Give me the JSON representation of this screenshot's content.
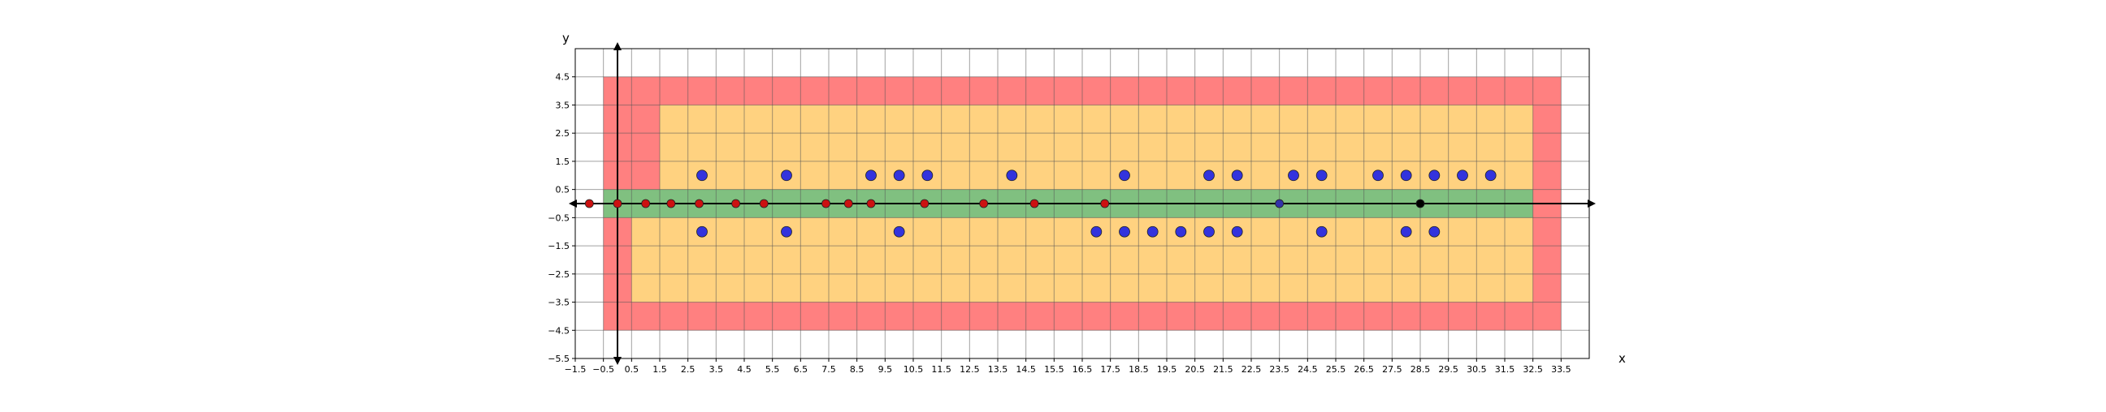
{
  "chart_data": {
    "type": "scatter",
    "title": "",
    "xlabel": "x",
    "ylabel": "y",
    "xlim": [
      -1.5,
      34.5
    ],
    "ylim": [
      -5.5,
      5.5
    ],
    "x_ticks": [
      -1.5,
      -0.5,
      0.5,
      1.5,
      2.5,
      3.5,
      4.5,
      5.5,
      6.5,
      7.5,
      8.5,
      9.5,
      10.5,
      11.5,
      12.5,
      13.5,
      14.5,
      15.5,
      16.5,
      17.5,
      18.5,
      19.5,
      20.5,
      21.5,
      22.5,
      23.5,
      24.5,
      25.5,
      26.5,
      27.5,
      28.5,
      29.5,
      30.5,
      31.5,
      32.5,
      33.5
    ],
    "y_ticks": [
      4.5,
      3.5,
      2.5,
      1.5,
      0.5,
      -0.5,
      -1.5,
      -2.5,
      -3.5,
      -4.5,
      -5.5
    ],
    "grid": true,
    "regions": [
      {
        "name": "outer",
        "color": "#ff8080",
        "xmin": -0.5,
        "xmax": 33.5,
        "ymin": -4.5,
        "ymax": 4.5
      },
      {
        "name": "inner-upper",
        "color": "#ffd280",
        "xmin": 1.5,
        "xmax": 32.5,
        "ymin": 0.5,
        "ymax": 3.5
      },
      {
        "name": "inner-lower",
        "color": "#ffd280",
        "xmin": 0.5,
        "xmax": 32.5,
        "ymin": -3.5,
        "ymax": -0.5
      },
      {
        "name": "band",
        "color": "#80c080",
        "xmin": -0.5,
        "xmax": 32.5,
        "ymin": -0.5,
        "ymax": 0.5
      }
    ],
    "series": [
      {
        "color": "#3333dd",
        "marker": "circle-large",
        "points": [
          [
            3,
            1
          ],
          [
            6,
            1
          ],
          [
            9,
            1
          ],
          [
            10,
            1
          ],
          [
            11,
            1
          ],
          [
            14,
            1
          ],
          [
            18,
            1
          ],
          [
            21,
            1
          ],
          [
            22,
            1
          ],
          [
            24,
            1
          ],
          [
            25,
            1
          ],
          [
            27,
            1
          ],
          [
            28,
            1
          ],
          [
            29,
            1
          ],
          [
            30,
            1
          ],
          [
            31,
            1
          ],
          [
            3,
            -1
          ],
          [
            6,
            -1
          ],
          [
            10,
            -1
          ],
          [
            17,
            -1
          ],
          [
            18,
            -1
          ],
          [
            19,
            -1
          ],
          [
            20,
            -1
          ],
          [
            21,
            -1
          ],
          [
            22,
            -1
          ],
          [
            25,
            -1
          ],
          [
            28,
            -1
          ],
          [
            29,
            -1
          ]
        ]
      },
      {
        "color": "#cc1111",
        "marker": "circle-small",
        "points": [
          [
            -1,
            0
          ],
          [
            0,
            0
          ],
          [
            1,
            0
          ],
          [
            1.9,
            0
          ],
          [
            2.9,
            0
          ],
          [
            4.2,
            0
          ],
          [
            5.2,
            0
          ],
          [
            7.4,
            0
          ],
          [
            8.2,
            0
          ],
          [
            9,
            0
          ],
          [
            10.9,
            0
          ],
          [
            13,
            0
          ],
          [
            14.8,
            0
          ],
          [
            17.3,
            0
          ]
        ]
      },
      {
        "color": "#3333aa",
        "marker": "circle-small",
        "points": [
          [
            23.5,
            0
          ]
        ]
      },
      {
        "color": "#000000",
        "marker": "circle-small",
        "points": [
          [
            28.5,
            0
          ]
        ]
      }
    ]
  }
}
